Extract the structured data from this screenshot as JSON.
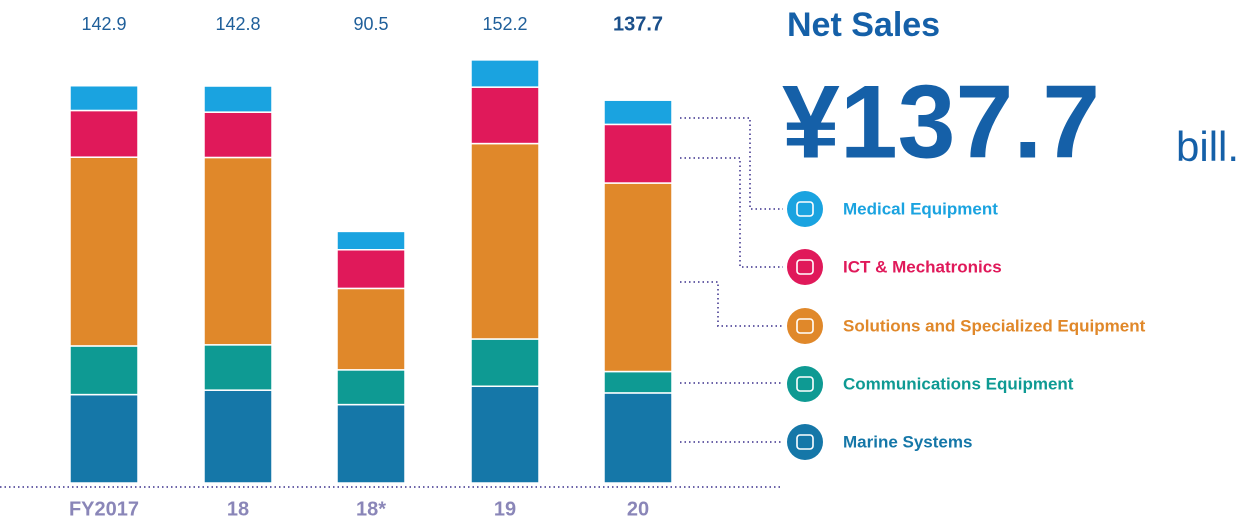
{
  "chart_data": {
    "type": "stacked_bar",
    "headline": {
      "label": "Net Sales",
      "value_text": "¥137.7",
      "unit": "bill."
    },
    "categories": [
      "FY2017",
      "18",
      "18*",
      "19",
      "20"
    ],
    "totals": [
      "142.9",
      "142.8",
      "90.5",
      "152.2",
      "137.7"
    ],
    "series": [
      {
        "name": "Medical Equipment",
        "color": "#1aa3e0",
        "values": [
          8.9,
          9.4,
          6.6,
          9.8,
          8.7
        ]
      },
      {
        "name": "ICT & Mechatronics",
        "color": "#e0195a",
        "values": [
          16.8,
          16.3,
          13.9,
          20.3,
          21.1
        ]
      },
      {
        "name": "Solutions and Specialized Equipment",
        "color": "#e0882a",
        "values": [
          67.9,
          67.4,
          29.3,
          70.3,
          67.8
        ]
      },
      {
        "name": "Communications Equipment",
        "color": "#0e9a93",
        "values": [
          17.5,
          16.3,
          12.5,
          17.0,
          7.7
        ]
      },
      {
        "name": "Marine Systems",
        "color": "#1577a8",
        "values": [
          31.8,
          33.4,
          28.2,
          34.8,
          32.4
        ]
      }
    ]
  }
}
